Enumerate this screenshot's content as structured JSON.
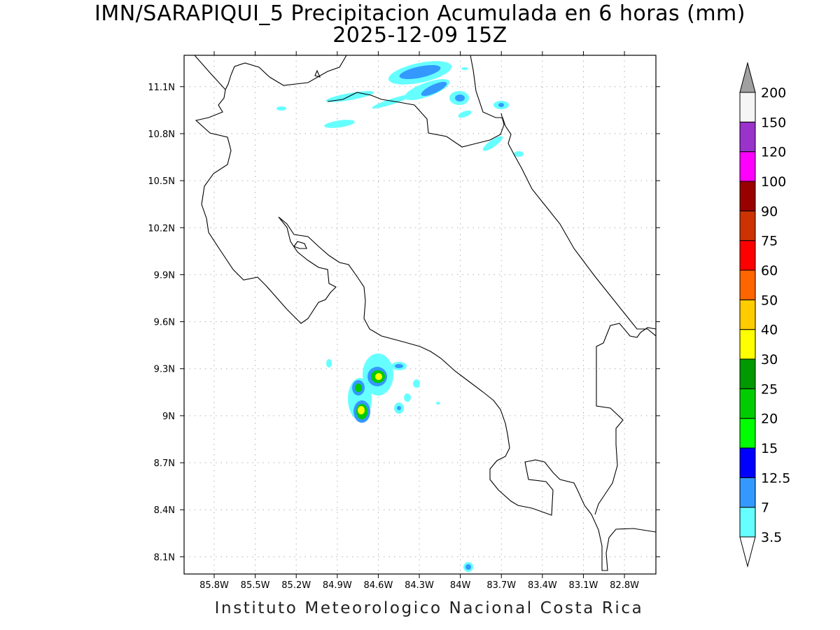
{
  "title_line1": "IMN/SARAPIQUI_5 Precipitacion Acumulada en 6 horas (mm)",
  "title_line2": "2025-12-09 15Z",
  "credit": "Instituto Meteorologico Nacional Costa Rica",
  "map": {
    "lon_range": [
      -86.02,
      -82.57
    ],
    "lat_range": [
      7.99,
      11.3
    ],
    "grid": true,
    "lon_ticks": [
      {
        "value": -85.8,
        "label": "85.8W"
      },
      {
        "value": -85.5,
        "label": "85.5W"
      },
      {
        "value": -85.2,
        "label": "85.2W"
      },
      {
        "value": -84.9,
        "label": "84.9W"
      },
      {
        "value": -84.6,
        "label": "84.6W"
      },
      {
        "value": -84.3,
        "label": "84.3W"
      },
      {
        "value": -84.0,
        "label": "84W"
      },
      {
        "value": -83.7,
        "label": "83.7W"
      },
      {
        "value": -83.4,
        "label": "83.4W"
      },
      {
        "value": -83.1,
        "label": "83.1W"
      },
      {
        "value": -82.8,
        "label": "82.8W"
      }
    ],
    "lat_ticks": [
      {
        "value": 11.1,
        "label": "11.1N"
      },
      {
        "value": 10.8,
        "label": "10.8N"
      },
      {
        "value": 10.5,
        "label": "10.5N"
      },
      {
        "value": 10.2,
        "label": "10.2N"
      },
      {
        "value": 9.9,
        "label": "9.9N"
      },
      {
        "value": 9.6,
        "label": "9.6N"
      },
      {
        "value": 9.3,
        "label": "9.3N"
      },
      {
        "value": 9.0,
        "label": "9N"
      },
      {
        "value": 8.7,
        "label": "8.7N"
      },
      {
        "value": 8.4,
        "label": "8.4N"
      },
      {
        "value": 8.1,
        "label": "8.1N"
      }
    ]
  },
  "colorbar": {
    "levels": [
      {
        "label": "3.5",
        "color": "#66ffff"
      },
      {
        "label": "7",
        "color": "#3399ff"
      },
      {
        "label": "12.5",
        "color": "#0000ff"
      },
      {
        "label": "15",
        "color": "#00ff00"
      },
      {
        "label": "20",
        "color": "#00cc00"
      },
      {
        "label": "25",
        "color": "#009900"
      },
      {
        "label": "30",
        "color": "#ffff00"
      },
      {
        "label": "40",
        "color": "#ffcc00"
      },
      {
        "label": "50",
        "color": "#ff6600"
      },
      {
        "label": "60",
        "color": "#ff0000"
      },
      {
        "label": "75",
        "color": "#cc3300"
      },
      {
        "label": "90",
        "color": "#990000"
      },
      {
        "label": "100",
        "color": "#ff00ff"
      },
      {
        "label": "120",
        "color": "#9933cc"
      },
      {
        "label": "150",
        "color": "#f5f5f5"
      },
      {
        "label": "200",
        "color": "#a0a0a0"
      }
    ]
  }
}
